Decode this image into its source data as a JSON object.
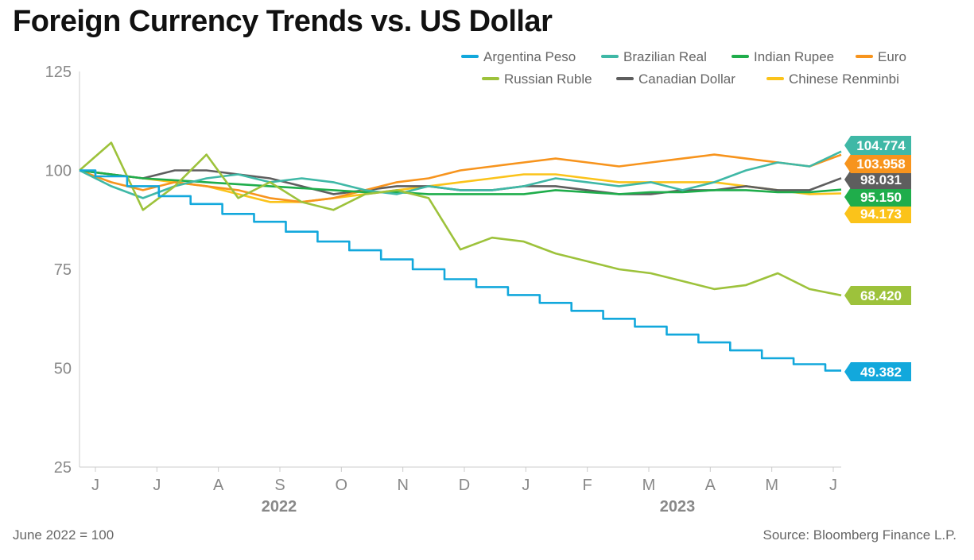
{
  "chart_data": {
    "type": "line",
    "title": "Foreign Currency Trends vs. US Dollar",
    "note": "June 2022 = 100",
    "source": "Source: Bloomberg Finance L.P.",
    "ylim": [
      25,
      125
    ],
    "yticks": [
      "125",
      "100",
      "75",
      "50",
      "25"
    ],
    "xticks": [
      "J",
      "J",
      "A",
      "S",
      "O",
      "N",
      "D",
      "J",
      "F",
      "M",
      "A",
      "M",
      "J"
    ],
    "years": [
      "2022",
      "2023"
    ],
    "grid": false,
    "legend_position": "top-right",
    "series": [
      {
        "name": "Argentina Peso",
        "color": "#12a8dc",
        "end_label": "49.382",
        "values": [
          100,
          98.5,
          96,
          93.5,
          91.5,
          89,
          87,
          84.5,
          82,
          79.8,
          77.5,
          75,
          72.5,
          70.5,
          68.5,
          66.5,
          64.5,
          62.5,
          60.5,
          58.5,
          56.5,
          54.5,
          52.5,
          51,
          49.382
        ]
      },
      {
        "name": "Brazilian Real",
        "color": "#3fb8a6",
        "end_label": "104.774",
        "values": [
          100,
          96,
          93,
          96,
          98,
          99,
          97,
          98,
          97,
          95,
          94,
          96,
          95,
          95,
          96,
          98,
          97,
          96,
          97,
          95,
          97,
          100,
          102,
          101,
          104.774
        ]
      },
      {
        "name": "Indian Rupee",
        "color": "#1fad4b",
        "end_label": "95.150",
        "values": [
          100,
          99,
          98,
          97.5,
          97,
          96.5,
          96,
          95.5,
          95,
          94.5,
          94.5,
          94,
          94,
          94,
          94,
          95,
          94.5,
          94,
          94.5,
          94.5,
          95,
          95,
          94.5,
          94.5,
          95.15
        ]
      },
      {
        "name": "Euro",
        "color": "#f7941d",
        "end_label": "103.958",
        "values": [
          100,
          97,
          95,
          97,
          96,
          95,
          93,
          92,
          93,
          95,
          97,
          98,
          100,
          101,
          102,
          103,
          102,
          101,
          102,
          103,
          104,
          103,
          102,
          101,
          103.958
        ]
      },
      {
        "name": "Russian Ruble",
        "color": "#9dc23b",
        "end_label": "68.420",
        "values": [
          100,
          107,
          90,
          96,
          104,
          93,
          97,
          92,
          90,
          94,
          95,
          93,
          80,
          83,
          82,
          79,
          77,
          75,
          74,
          72,
          70,
          71,
          74,
          70,
          68.42
        ]
      },
      {
        "name": "Canadian Dollar",
        "color": "#5e5e5e",
        "end_label": "98.031",
        "values": [
          100,
          99,
          98,
          100,
          100,
          99,
          98,
          96,
          94,
          95,
          96,
          96,
          95,
          95,
          96,
          96,
          95,
          94,
          94,
          95,
          95,
          96,
          95,
          95,
          98.031
        ]
      },
      {
        "name": "Chinese Renminbi",
        "color": "#fbc31a",
        "end_label": "94.173",
        "values": [
          100,
          99,
          98,
          97,
          96,
          94,
          92,
          92,
          93,
          94,
          95,
          96,
          97,
          98,
          99,
          99,
          98,
          97,
          97,
          97,
          97,
          96,
          95,
          94,
          94.173
        ]
      }
    ]
  }
}
